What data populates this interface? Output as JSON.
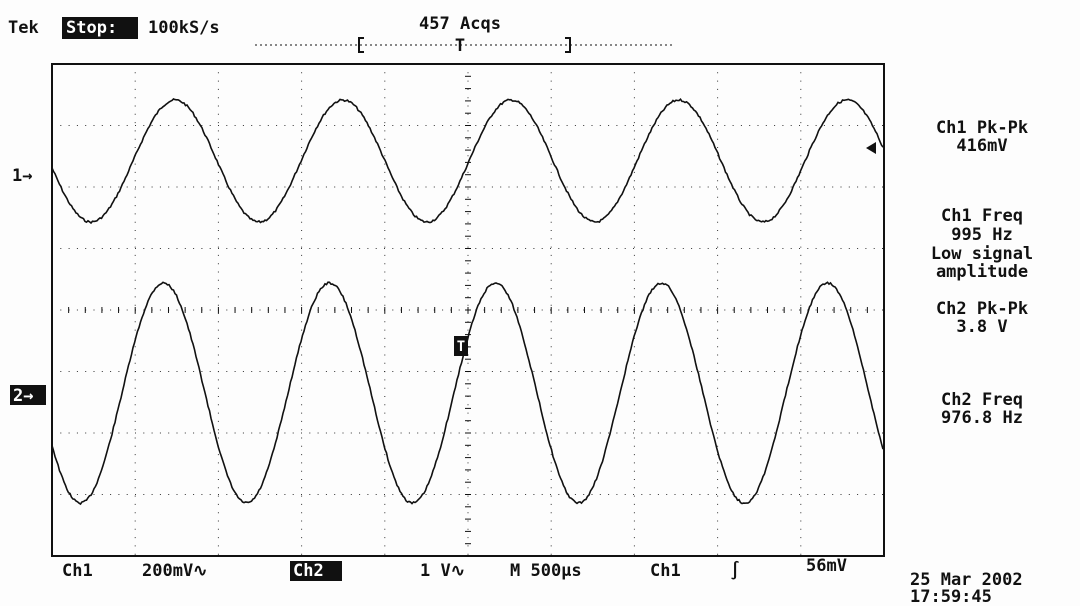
{
  "header": {
    "brand": "Tek",
    "status": "Stop:",
    "sample_rate": "100kS/s",
    "acquisitions": "457 Acqs",
    "trigger_position": "T"
  },
  "markers": {
    "ch1": "1→",
    "ch2": "2→",
    "trigger": "T"
  },
  "readouts": [
    {
      "label": "Ch1 Pk-Pk",
      "value": "416mV"
    },
    {
      "label": "Ch1 Freq",
      "value": "995 Hz",
      "note": [
        "Low signal",
        "amplitude"
      ]
    },
    {
      "label": "Ch2 Pk-Pk",
      "value": "3.8 V"
    },
    {
      "label": "Ch2 Freq",
      "value": "976.8 Hz"
    }
  ],
  "footer": {
    "ch1_label": "Ch1",
    "ch1_scale": "200mV∿",
    "ch2_label": "Ch2",
    "ch2_scale": "1 V∿",
    "timebase": "M 500µs",
    "trigger_source": "Ch1",
    "trigger_slope": "∫",
    "trigger_level": "56mV"
  },
  "timestamp": {
    "date": "25 Mar 2002",
    "time": "17:59:45"
  }
}
